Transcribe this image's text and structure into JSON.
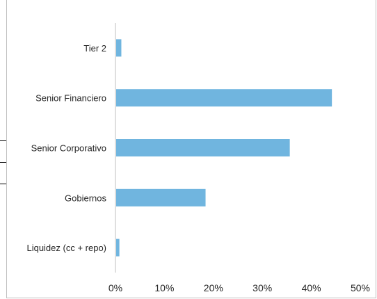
{
  "chart_data": {
    "type": "bar",
    "orientation": "horizontal",
    "categories": [
      "Tier 2",
      "Senior Financiero",
      "Senior Corporativo",
      "Gobiernos",
      "Liquidez (cc + repo)"
    ],
    "values": [
      1.2,
      44.2,
      35.6,
      18.4,
      0.8
    ],
    "value_unit": "%",
    "xlim": [
      0,
      50
    ],
    "xticks": [
      "0%",
      "10%",
      "20%",
      "30%",
      "40%",
      "50%"
    ],
    "bar_color": "#70b5df",
    "axis_color": "#bfbfbf",
    "grid": false,
    "legend": "none",
    "title": "",
    "xlabel": "",
    "ylabel": ""
  }
}
